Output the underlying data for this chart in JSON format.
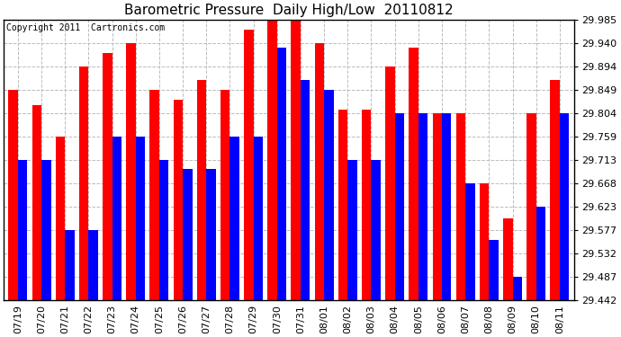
{
  "title": "Barometric Pressure  Daily High/Low  20110812",
  "copyright": "Copyright 2011  Cartronics.com",
  "dates": [
    "07/19",
    "07/20",
    "07/21",
    "07/22",
    "07/23",
    "07/24",
    "07/25",
    "07/26",
    "07/27",
    "07/28",
    "07/29",
    "07/30",
    "07/31",
    "08/01",
    "08/02",
    "08/03",
    "08/04",
    "08/05",
    "08/06",
    "08/07",
    "08/08",
    "08/09",
    "08/10",
    "08/11"
  ],
  "highs": [
    29.849,
    29.82,
    29.759,
    29.894,
    29.921,
    29.94,
    29.849,
    29.83,
    29.868,
    29.849,
    29.965,
    29.985,
    29.985,
    29.94,
    29.81,
    29.81,
    29.894,
    29.93,
    29.804,
    29.804,
    29.668,
    29.6,
    29.804,
    29.868
  ],
  "lows": [
    29.713,
    29.713,
    29.577,
    29.577,
    29.759,
    29.759,
    29.713,
    29.695,
    29.695,
    29.759,
    29.759,
    29.93,
    29.868,
    29.849,
    29.713,
    29.713,
    29.804,
    29.804,
    29.804,
    29.668,
    29.559,
    29.487,
    29.623,
    29.804
  ],
  "yticks": [
    29.442,
    29.487,
    29.532,
    29.577,
    29.623,
    29.668,
    29.713,
    29.759,
    29.804,
    29.849,
    29.894,
    29.94,
    29.985
  ],
  "ymin": 29.442,
  "ymax": 29.985,
  "high_color": "#ff0000",
  "low_color": "#0000ff",
  "bg_color": "#ffffff",
  "grid_color": "#bbbbbb",
  "title_fontsize": 11,
  "tick_fontsize": 8,
  "copyright_fontsize": 7
}
